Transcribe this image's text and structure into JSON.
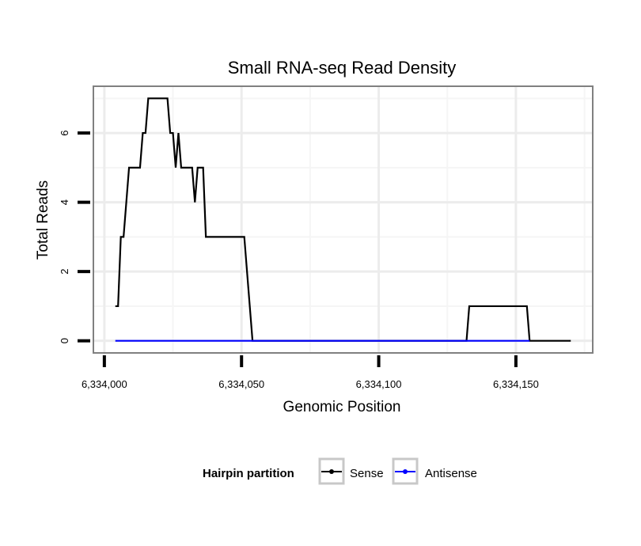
{
  "chart_data": {
    "type": "line",
    "title": "Small RNA-seq Read Density",
    "xlabel": "Genomic Position",
    "ylabel": "Total Reads",
    "xlim": [
      6333996,
      6334178
    ],
    "ylim": [
      -0.35,
      7.35
    ],
    "x_ticks": [
      6334000,
      6334050,
      6334100,
      6334150
    ],
    "x_tick_labels": [
      "6,334,000",
      "6,334,050",
      "6,334,100",
      "6,334,150"
    ],
    "y_ticks": [
      0,
      2,
      4,
      6
    ],
    "y_tick_labels": [
      "0",
      "2",
      "4",
      "6"
    ],
    "grid": true,
    "legend": {
      "title": "Hairpin partition",
      "position": "bottom",
      "entries": [
        {
          "label": "Sense",
          "color": "#000000"
        },
        {
          "label": "Antisense",
          "color": "#0000ff"
        }
      ]
    },
    "series": [
      {
        "name": "Sense",
        "color": "#000000",
        "points": [
          [
            6334004,
            1
          ],
          [
            6334005,
            1
          ],
          [
            6334006,
            3
          ],
          [
            6334007,
            3
          ],
          [
            6334009,
            5
          ],
          [
            6334013,
            5
          ],
          [
            6334014,
            6
          ],
          [
            6334015,
            6
          ],
          [
            6334016,
            7
          ],
          [
            6334023,
            7
          ],
          [
            6334024,
            6
          ],
          [
            6334025,
            6
          ],
          [
            6334026,
            5
          ],
          [
            6334027,
            6
          ],
          [
            6334028,
            5
          ],
          [
            6334032,
            5
          ],
          [
            6334033,
            4
          ],
          [
            6334034,
            5
          ],
          [
            6334036,
            5
          ],
          [
            6334037,
            3
          ],
          [
            6334051,
            3
          ],
          [
            6334052,
            2
          ],
          [
            6334054,
            0
          ],
          [
            6334132,
            0
          ],
          [
            6334133,
            1
          ],
          [
            6334154,
            1
          ],
          [
            6334155,
            0
          ],
          [
            6334170,
            0
          ]
        ]
      },
      {
        "name": "Antisense",
        "color": "#0000ff",
        "points": [
          [
            6334004,
            0
          ],
          [
            6334155,
            0
          ]
        ]
      }
    ]
  }
}
